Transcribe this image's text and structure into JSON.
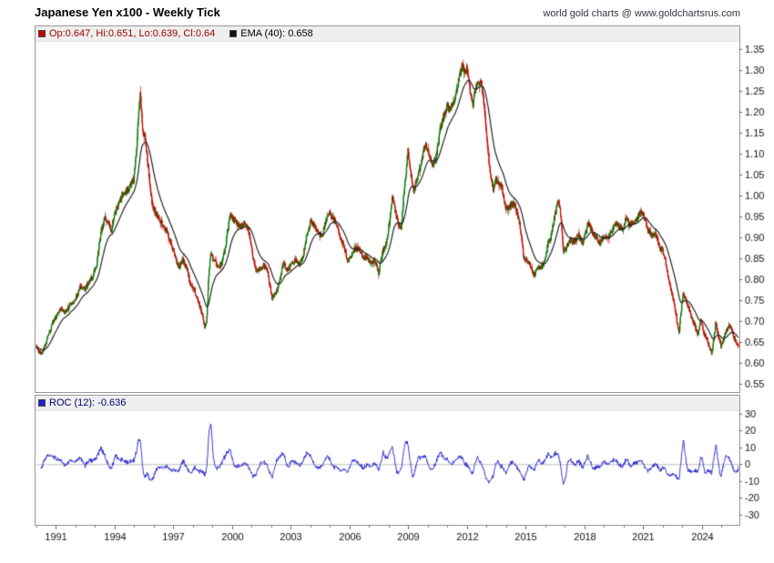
{
  "header": {
    "title": "Japanese Yen x100 - Weekly Tick",
    "credit": "world gold charts @ www.goldchartsrus.com"
  },
  "price_panel": {
    "ohlc_legend": "Op:0.647, Hi:0.651, Lo:0.639, Cl:0.64",
    "ohlc_text_color": "#990000",
    "ohlc_swatch_color": "#cc0000",
    "ema_legend": "EMA (40): 0.658",
    "ema_text_color": "#000000",
    "ema_swatch_color": "#111111"
  },
  "roc_panel": {
    "legend": "ROC (12): -0.636",
    "text_color": "#000066",
    "swatch_color": "#2222cc"
  },
  "chart_data": [
    {
      "type": "candlestick",
      "title": "Japanese Yen x100 - Weekly Tick",
      "interval": "weekly",
      "x_range": [
        1990.0,
        2025.9
      ],
      "y_range": [
        0.55,
        1.35
      ],
      "y_ticks": [
        1.35,
        1.3,
        1.25,
        1.2,
        1.15,
        1.1,
        1.05,
        1.0,
        0.95,
        0.9,
        0.85,
        0.8,
        0.75,
        0.7,
        0.65,
        0.6,
        0.55
      ],
      "x_ticks": [
        1991,
        1994,
        1997,
        2000,
        2003,
        2006,
        2009,
        2012,
        2015,
        2018,
        2021,
        2024
      ],
      "up_color": "#007a00",
      "down_color": "#cc0000",
      "last_bar": {
        "open": 0.647,
        "high": 0.651,
        "low": 0.639,
        "close": 0.64
      },
      "overlays": [
        {
          "name": "EMA (40)",
          "period": 40,
          "last": 0.658,
          "color": "#222222"
        }
      ],
      "weekly_close_anchors": [
        [
          1990.0,
          0.64
        ],
        [
          1990.15,
          0.627
        ],
        [
          1990.3,
          0.622
        ],
        [
          1990.5,
          0.645
        ],
        [
          1990.7,
          0.675
        ],
        [
          1990.9,
          0.7
        ],
        [
          1991.1,
          0.715
        ],
        [
          1991.3,
          0.73
        ],
        [
          1991.5,
          0.72
        ],
        [
          1991.7,
          0.735
        ],
        [
          1991.9,
          0.745
        ],
        [
          1992.1,
          0.76
        ],
        [
          1992.3,
          0.785
        ],
        [
          1992.5,
          0.775
        ],
        [
          1992.7,
          0.795
        ],
        [
          1992.9,
          0.805
        ],
        [
          1993.1,
          0.835
        ],
        [
          1993.3,
          0.905
        ],
        [
          1993.5,
          0.945
        ],
        [
          1993.7,
          0.935
        ],
        [
          1993.85,
          0.915
        ],
        [
          1994.0,
          0.955
        ],
        [
          1994.2,
          0.975
        ],
        [
          1994.4,
          1.0
        ],
        [
          1994.6,
          1.01
        ],
        [
          1994.8,
          1.02
        ],
        [
          1995.0,
          1.04
        ],
        [
          1995.15,
          1.12
        ],
        [
          1995.25,
          1.21
        ],
        [
          1995.32,
          1.245
        ],
        [
          1995.45,
          1.16
        ],
        [
          1995.6,
          1.13
        ],
        [
          1995.75,
          1.06
        ],
        [
          1995.9,
          0.99
        ],
        [
          1996.1,
          0.955
        ],
        [
          1996.3,
          0.945
        ],
        [
          1996.5,
          0.925
        ],
        [
          1996.7,
          0.915
        ],
        [
          1996.9,
          0.885
        ],
        [
          1997.1,
          0.855
        ],
        [
          1997.3,
          0.83
        ],
        [
          1997.5,
          0.845
        ],
        [
          1997.7,
          0.825
        ],
        [
          1997.9,
          0.785
        ],
        [
          1998.1,
          0.775
        ],
        [
          1998.3,
          0.745
        ],
        [
          1998.5,
          0.715
        ],
        [
          1998.62,
          0.685
        ],
        [
          1998.72,
          0.7
        ],
        [
          1998.82,
          0.8
        ],
        [
          1998.92,
          0.86
        ],
        [
          1999.1,
          0.845
        ],
        [
          1999.3,
          0.825
        ],
        [
          1999.5,
          0.84
        ],
        [
          1999.7,
          0.88
        ],
        [
          1999.9,
          0.955
        ],
        [
          2000.05,
          0.945
        ],
        [
          2000.25,
          0.935
        ],
        [
          2000.45,
          0.925
        ],
        [
          2000.65,
          0.935
        ],
        [
          2000.85,
          0.92
        ],
        [
          2001.05,
          0.86
        ],
        [
          2001.25,
          0.82
        ],
        [
          2001.45,
          0.825
        ],
        [
          2001.65,
          0.835
        ],
        [
          2001.85,
          0.815
        ],
        [
          2002.05,
          0.755
        ],
        [
          2002.25,
          0.765
        ],
        [
          2002.45,
          0.795
        ],
        [
          2002.65,
          0.84
        ],
        [
          2002.85,
          0.82
        ],
        [
          2003.05,
          0.84
        ],
        [
          2003.25,
          0.845
        ],
        [
          2003.45,
          0.835
        ],
        [
          2003.65,
          0.855
        ],
        [
          2003.85,
          0.91
        ],
        [
          2004.05,
          0.94
        ],
        [
          2004.25,
          0.925
        ],
        [
          2004.45,
          0.905
        ],
        [
          2004.65,
          0.91
        ],
        [
          2004.85,
          0.945
        ],
        [
          2004.95,
          0.96
        ],
        [
          2005.1,
          0.95
        ],
        [
          2005.3,
          0.935
        ],
        [
          2005.5,
          0.905
        ],
        [
          2005.7,
          0.885
        ],
        [
          2005.9,
          0.845
        ],
        [
          2006.1,
          0.855
        ],
        [
          2006.3,
          0.875
        ],
        [
          2006.5,
          0.87
        ],
        [
          2006.7,
          0.855
        ],
        [
          2006.9,
          0.85
        ],
        [
          2007.1,
          0.84
        ],
        [
          2007.3,
          0.845
        ],
        [
          2007.5,
          0.815
        ],
        [
          2007.7,
          0.865
        ],
        [
          2007.9,
          0.885
        ],
        [
          2008.05,
          0.935
        ],
        [
          2008.2,
          1.0
        ],
        [
          2008.35,
          0.96
        ],
        [
          2008.5,
          0.935
        ],
        [
          2008.65,
          0.92
        ],
        [
          2008.8,
          1.01
        ],
        [
          2008.9,
          1.055
        ],
        [
          2009.0,
          1.105
        ],
        [
          2009.15,
          1.05
        ],
        [
          2009.3,
          1.01
        ],
        [
          2009.45,
          1.04
        ],
        [
          2009.6,
          1.06
        ],
        [
          2009.75,
          1.095
        ],
        [
          2009.9,
          1.13
        ],
        [
          2010.05,
          1.1
        ],
        [
          2010.25,
          1.07
        ],
        [
          2010.45,
          1.095
        ],
        [
          2010.65,
          1.16
        ],
        [
          2010.85,
          1.195
        ],
        [
          2011.0,
          1.215
        ],
        [
          2011.15,
          1.2
        ],
        [
          2011.3,
          1.225
        ],
        [
          2011.45,
          1.24
        ],
        [
          2011.6,
          1.28
        ],
        [
          2011.75,
          1.31
        ],
        [
          2011.9,
          1.295
        ],
        [
          2012.0,
          1.305
        ],
        [
          2012.15,
          1.255
        ],
        [
          2012.3,
          1.215
        ],
        [
          2012.45,
          1.255
        ],
        [
          2012.6,
          1.275
        ],
        [
          2012.75,
          1.265
        ],
        [
          2012.9,
          1.215
        ],
        [
          2013.05,
          1.12
        ],
        [
          2013.2,
          1.06
        ],
        [
          2013.35,
          1.015
        ],
        [
          2013.5,
          1.04
        ],
        [
          2013.65,
          1.025
        ],
        [
          2013.8,
          1.02
        ],
        [
          2013.95,
          0.975
        ],
        [
          2014.1,
          0.97
        ],
        [
          2014.3,
          0.98
        ],
        [
          2014.5,
          0.975
        ],
        [
          2014.7,
          0.935
        ],
        [
          2014.9,
          0.855
        ],
        [
          2015.05,
          0.845
        ],
        [
          2015.25,
          0.835
        ],
        [
          2015.45,
          0.81
        ],
        [
          2015.65,
          0.825
        ],
        [
          2015.85,
          0.83
        ],
        [
          2016.0,
          0.845
        ],
        [
          2016.15,
          0.885
        ],
        [
          2016.3,
          0.9
        ],
        [
          2016.45,
          0.94
        ],
        [
          2016.6,
          0.975
        ],
        [
          2016.7,
          0.99
        ],
        [
          2016.8,
          0.955
        ],
        [
          2016.95,
          0.865
        ],
        [
          2017.1,
          0.875
        ],
        [
          2017.3,
          0.895
        ],
        [
          2017.5,
          0.89
        ],
        [
          2017.7,
          0.905
        ],
        [
          2017.9,
          0.885
        ],
        [
          2018.05,
          0.905
        ],
        [
          2018.2,
          0.935
        ],
        [
          2018.4,
          0.915
        ],
        [
          2018.6,
          0.9
        ],
        [
          2018.8,
          0.885
        ],
        [
          2019.0,
          0.905
        ],
        [
          2019.2,
          0.895
        ],
        [
          2019.4,
          0.915
        ],
        [
          2019.6,
          0.935
        ],
        [
          2019.8,
          0.925
        ],
        [
          2020.0,
          0.92
        ],
        [
          2020.15,
          0.95
        ],
        [
          2020.3,
          0.93
        ],
        [
          2020.5,
          0.935
        ],
        [
          2020.7,
          0.945
        ],
        [
          2020.9,
          0.96
        ],
        [
          2021.05,
          0.95
        ],
        [
          2021.25,
          0.915
        ],
        [
          2021.45,
          0.905
        ],
        [
          2021.65,
          0.91
        ],
        [
          2021.85,
          0.875
        ],
        [
          2022.0,
          0.87
        ],
        [
          2022.15,
          0.845
        ],
        [
          2022.3,
          0.805
        ],
        [
          2022.45,
          0.77
        ],
        [
          2022.6,
          0.745
        ],
        [
          2022.75,
          0.695
        ],
        [
          2022.85,
          0.675
        ],
        [
          2022.95,
          0.725
        ],
        [
          2023.05,
          0.765
        ],
        [
          2023.2,
          0.75
        ],
        [
          2023.35,
          0.73
        ],
        [
          2023.5,
          0.705
        ],
        [
          2023.65,
          0.69
        ],
        [
          2023.8,
          0.665
        ],
        [
          2023.95,
          0.705
        ],
        [
          2024.1,
          0.67
        ],
        [
          2024.25,
          0.66
        ],
        [
          2024.4,
          0.635
        ],
        [
          2024.52,
          0.622
        ],
        [
          2024.62,
          0.66
        ],
        [
          2024.72,
          0.695
        ],
        [
          2024.85,
          0.665
        ],
        [
          2025.0,
          0.64
        ],
        [
          2025.1,
          0.655
        ],
        [
          2025.25,
          0.675
        ],
        [
          2025.4,
          0.69
        ],
        [
          2025.55,
          0.675
        ],
        [
          2025.7,
          0.655
        ],
        [
          2025.85,
          0.64
        ]
      ]
    },
    {
      "type": "line",
      "name": "ROC (12)",
      "derived_from": "rate of change over 12 weekly closes, percent",
      "last": -0.636,
      "y_range": [
        -30,
        30
      ],
      "y_ticks": [
        30,
        20,
        10,
        0,
        -10,
        -20,
        -30
      ],
      "color": "#2222cc",
      "zero_line_color": "#bbbbbb"
    }
  ]
}
